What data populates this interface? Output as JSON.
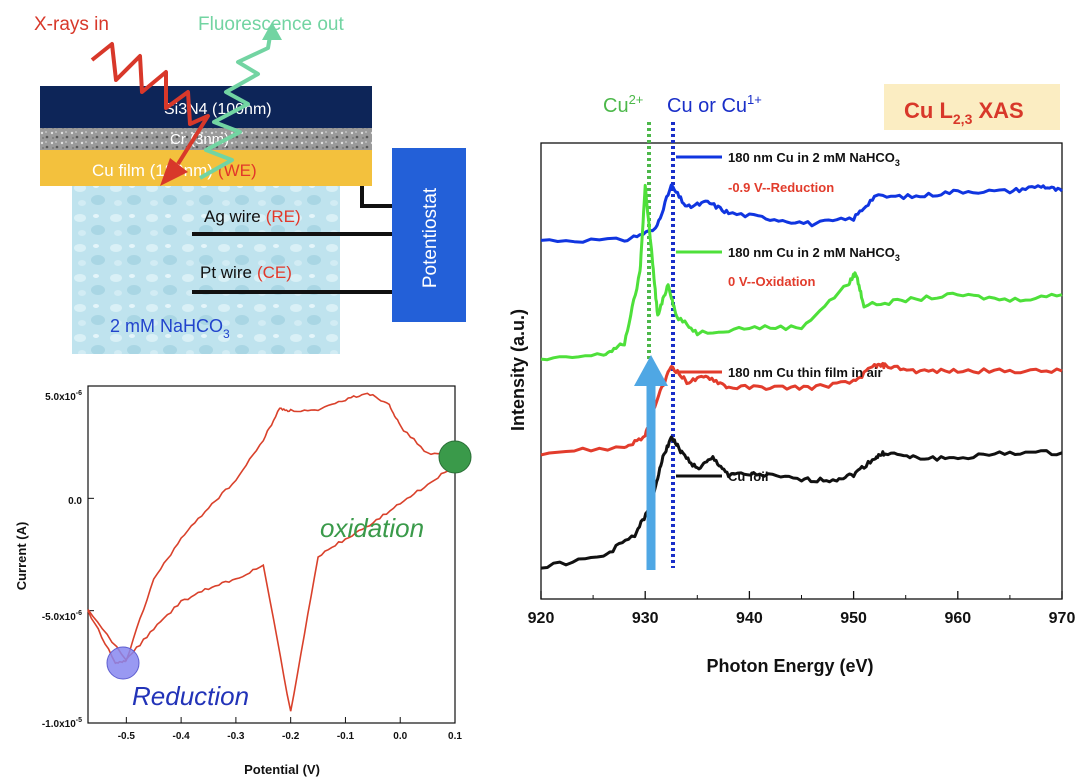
{
  "schematic": {
    "xray_label": "X-rays in",
    "fluor_label": "Fluorescence out",
    "si3n4_label": "Si3N4 (100nm)",
    "layer2_label": "Cr (3nm)",
    "cu_film_label": "Cu film (180nm)",
    "cu_film_we": "(WE)",
    "ag_wire": "Ag wire",
    "ag_re": "(RE)",
    "pt_wire": "Pt wire",
    "pt_ce": "(CE)",
    "electrolyte": "2 mM NaHCO",
    "electrolyte_sub": "3",
    "potentiostat": "Potentiostat"
  },
  "cv": {
    "ylabel": "Current (A)",
    "xlabel": "Potential (V)",
    "x_ticks": [
      "-0.5",
      "-0.4",
      "-0.3",
      "-0.2",
      "-0.1",
      "0.0",
      "0.1"
    ],
    "y_ticks": [
      {
        "mant": "5.0x10",
        "exp": "-6"
      },
      {
        "mant": "0.0",
        "exp": ""
      },
      {
        "mant": "-5.0x10",
        "exp": "-6"
      },
      {
        "mant": "-1.0x10",
        "exp": "-5"
      }
    ],
    "oxidation_label": "oxidation",
    "reduction_label": "Reduction",
    "colors": {
      "curve": "#d9412b",
      "oxidation": "#3a9a4a",
      "reduction": "#2233b8"
    }
  },
  "xas": {
    "title_main": "Cu L",
    "title_sub": "2,3",
    "title_suffix": " XAS",
    "cu2_label": "Cu",
    "cu2_sup": "2+",
    "cu1_label": "Cu or Cu",
    "cu1_sup": "1+",
    "ylabel": "Intensity (a.u.)",
    "xlabel": "Photon Energy (eV)",
    "x_ticks": [
      "920",
      "930",
      "940",
      "950",
      "960",
      "970"
    ],
    "legend": [
      {
        "text": "180 nm Cu in 2 mM NaHCO",
        "sub": "3",
        "color": "#1035e0"
      },
      {
        "text": "-0.9 V--Reduction",
        "sub": "",
        "color": "#e23c2c"
      },
      {
        "text": "180 nm Cu in 2 mM NaHCO",
        "sub": "3",
        "color": "#4ee03a"
      },
      {
        "text": "0 V--Oxidation",
        "sub": "",
        "color": "#e23c2c"
      },
      {
        "text": "180 nm Cu thin film in air",
        "sub": "",
        "color": "#e23c2c"
      },
      {
        "text": "Cu foil",
        "sub": "",
        "color": "#111111"
      }
    ]
  },
  "chart_data": [
    {
      "type": "line",
      "title": "",
      "xlabel": "Potential (V)",
      "ylabel": "Current (A)",
      "xlim": [
        -0.57,
        0.1
      ],
      "ylim": [
        -1e-05,
        5e-06
      ],
      "series": [
        {
          "x": [
            0.1,
            0.05,
            0.0,
            -0.05,
            -0.1,
            -0.15,
            -0.2,
            -0.25,
            -0.3,
            -0.35,
            -0.4,
            -0.45,
            -0.5,
            -0.52,
            -0.57
          ],
          "y": [
            1.5e-06,
            6e-07,
            -2e-07,
            -1.1e-06,
            -1.8e-06,
            -2.6e-06,
            -9.5e-06,
            -3e-06,
            -3.6e-06,
            -4e-06,
            -4.6e-06,
            -5.8e-06,
            -7.2e-06,
            -7.3e-06,
            -5e-06
          ]
        },
        {
          "x": [
            -0.57,
            -0.5,
            -0.45,
            -0.4,
            -0.35,
            -0.3,
            -0.25,
            -0.22,
            -0.2,
            -0.15,
            -0.1,
            -0.06,
            -0.02,
            0.0,
            0.05,
            0.1
          ],
          "y": [
            -5e-06,
            -7.2e-06,
            -3.6e-06,
            -1.8e-06,
            -4e-07,
            8e-07,
            2.6e-06,
            4e-06,
            3.9e-06,
            3.9e-06,
            4.4e-06,
            4.7e-06,
            4.2e-06,
            3.2e-06,
            2e-06,
            1.9e-06
          ]
        }
      ]
    },
    {
      "type": "line",
      "title": "Cu L2,3 XAS",
      "xlabel": "Photon Energy (eV)",
      "ylabel": "Intensity (a.u.)",
      "xlim": [
        920,
        970
      ],
      "series": [
        {
          "name": "180 nm Cu in 2 mM NaHCO3 -0.9 V--Reduction",
          "x": [
            920,
            928,
            931,
            932.5,
            934,
            936,
            938,
            942,
            946,
            950,
            952,
            956,
            960,
            965,
            968,
            970
          ],
          "y": [
            8.6,
            8.6,
            8.8,
            9.6,
            9.2,
            9.3,
            9.1,
            9.0,
            8.9,
            9.0,
            9.4,
            9.4,
            9.5,
            9.5,
            9.6,
            9.5
          ]
        },
        {
          "name": "180 nm Cu in 2 mM NaHCO3 0 V--Oxidation",
          "x": [
            920,
            926,
            928,
            929.5,
            930,
            930.6,
            931.2,
            932.2,
            933,
            935,
            940,
            945,
            949.5,
            950.2,
            951,
            955,
            960,
            965,
            970
          ],
          "y": [
            6.4,
            6.5,
            6.7,
            8.0,
            9.6,
            8.4,
            7.2,
            7.8,
            7.2,
            6.9,
            7.0,
            7.0,
            7.8,
            8.0,
            7.4,
            7.5,
            7.6,
            7.5,
            7.6
          ]
        },
        {
          "name": "180 nm Cu thin film in air",
          "x": [
            920,
            928,
            930,
            931,
            932.5,
            934,
            936,
            938,
            942,
            946,
            950,
            952,
            953,
            956,
            960,
            965,
            970
          ],
          "y": [
            4.7,
            4.8,
            5.0,
            5.6,
            6.3,
            6.0,
            6.1,
            5.9,
            5.9,
            5.9,
            6.0,
            6.3,
            6.3,
            6.2,
            6.2,
            6.2,
            6.2
          ]
        },
        {
          "name": "Cu foil",
          "x": [
            920,
            926,
            929,
            930.5,
            931.5,
            932.5,
            933.5,
            935,
            936.5,
            938,
            941,
            945,
            948,
            950,
            952,
            953,
            956,
            960,
            965,
            970
          ],
          "y": [
            2.6,
            2.8,
            3.2,
            3.7,
            4.5,
            5.0,
            4.7,
            4.4,
            4.6,
            4.3,
            4.3,
            4.2,
            4.2,
            4.3,
            4.6,
            4.7,
            4.6,
            4.6,
            4.7,
            4.7
          ]
        }
      ]
    }
  ]
}
